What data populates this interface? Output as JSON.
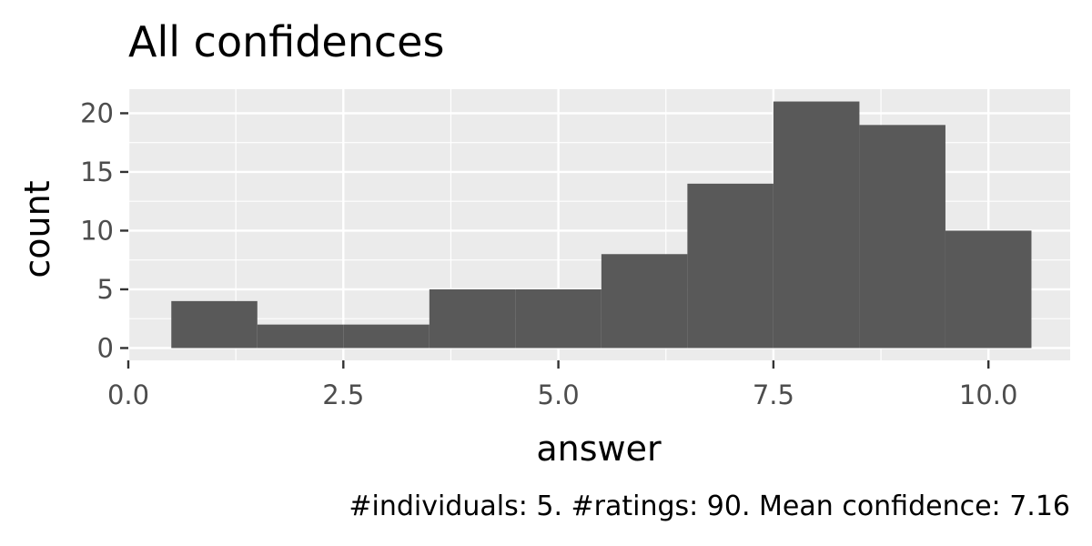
{
  "chart_data": {
    "type": "bar",
    "title": "All confidences",
    "xlabel": "answer",
    "ylabel": "count",
    "caption": "#individuals: 5. #ratings: 90. Mean confidence: 7.16",
    "bins": [
      {
        "x_start": 0.5,
        "x_end": 1.5,
        "count": 4
      },
      {
        "x_start": 1.5,
        "x_end": 2.5,
        "count": 2
      },
      {
        "x_start": 2.5,
        "x_end": 3.5,
        "count": 2
      },
      {
        "x_start": 3.5,
        "x_end": 4.5,
        "count": 5
      },
      {
        "x_start": 4.5,
        "x_end": 5.5,
        "count": 5
      },
      {
        "x_start": 5.5,
        "x_end": 6.5,
        "count": 8
      },
      {
        "x_start": 6.5,
        "x_end": 7.5,
        "count": 14
      },
      {
        "x_start": 7.5,
        "x_end": 8.5,
        "count": 21
      },
      {
        "x_start": 8.5,
        "x_end": 9.5,
        "count": 19
      },
      {
        "x_start": 9.5,
        "x_end": 10.5,
        "count": 10
      }
    ],
    "xlim": [
      0,
      10.95
    ],
    "ylim": [
      -1.05,
      22.05
    ],
    "x_ticks": [
      0,
      2.5,
      5,
      7.5,
      10
    ],
    "x_tick_labels": [
      "0.0",
      "2.5",
      "5.0",
      "7.5",
      "10.0"
    ],
    "y_ticks": [
      0,
      5,
      10,
      15,
      20
    ],
    "y_tick_labels": [
      "0",
      "5",
      "10",
      "15",
      "20"
    ],
    "grid": true,
    "bar_color": "#595959",
    "panel_color": "#ebebeb",
    "grid_color": "#ffffff"
  }
}
